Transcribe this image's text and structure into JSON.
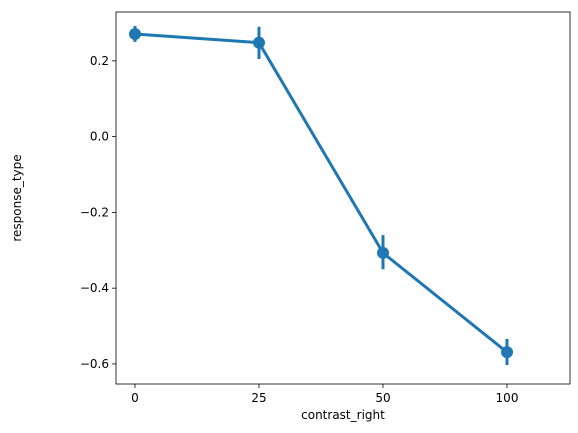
{
  "chart_data": {
    "type": "pointplot",
    "x_label": "contrast_right",
    "y_label": "response_type",
    "categories": [
      "0",
      "25",
      "50",
      "100"
    ],
    "series": [
      {
        "name": "response_type",
        "color": "#1f77b4",
        "values": [
          0.271,
          0.248,
          -0.307,
          -0.569
        ],
        "ci_low": [
          0.25,
          0.205,
          -0.35,
          -0.603
        ],
        "ci_high": [
          0.292,
          0.29,
          -0.26,
          -0.534
        ]
      }
    ],
    "ylim": [
      -0.653,
      0.329
    ],
    "yticks": [
      0.2,
      {
        "value": 0,
        "label": "0.0"
      },
      {
        "value": -0.2,
        "label": "−0.2"
      },
      {
        "value": -0.4,
        "label": "−0.4"
      },
      {
        "value": -0.6,
        "label": "−0.6"
      }
    ]
  }
}
